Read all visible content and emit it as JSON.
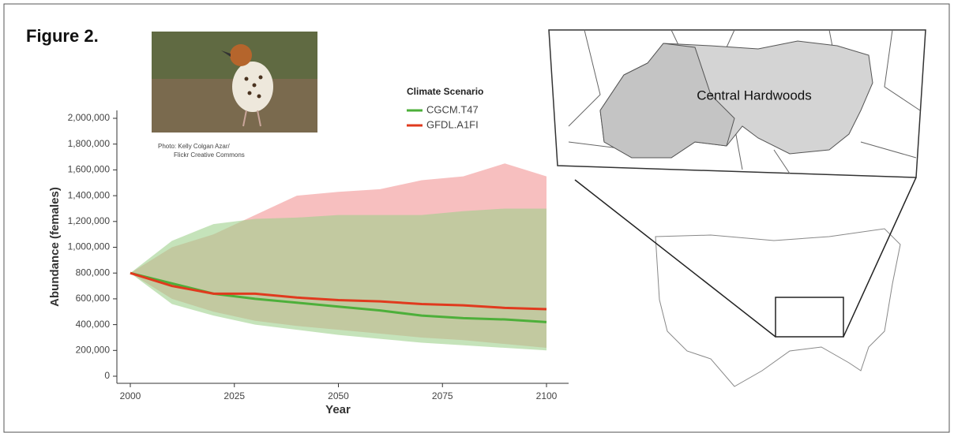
{
  "chart_data": {
    "type": "ribbon-line",
    "figure_label": "Figure 2.",
    "photo_credit": [
      "Photo: Kelly Colgan Azar/",
      "Flickr Creative Commons"
    ],
    "map_label": "Central Hardwoods",
    "legend_title": "Climate Scenario",
    "xlabel": "Year",
    "ylabel": "Abundance (females)",
    "x": [
      2000,
      2010,
      2020,
      2030,
      2040,
      2050,
      2060,
      2070,
      2080,
      2090,
      2100
    ],
    "series": [
      {
        "name": "CGCM.T47",
        "color": "#4daf3a",
        "band_color": "#9fd08c",
        "values": [
          800000,
          720000,
          640000,
          600000,
          570000,
          540000,
          510000,
          470000,
          450000,
          440000,
          420000
        ],
        "lower": [
          800000,
          560000,
          470000,
          400000,
          360000,
          320000,
          290000,
          260000,
          240000,
          220000,
          200000
        ],
        "upper": [
          800000,
          1050000,
          1180000,
          1220000,
          1230000,
          1250000,
          1250000,
          1250000,
          1280000,
          1300000,
          1300000
        ]
      },
      {
        "name": "GFDL.A1FI",
        "color": "#e03a1e",
        "band_color": "#f4a9a9",
        "values": [
          800000,
          700000,
          640000,
          640000,
          610000,
          590000,
          580000,
          560000,
          550000,
          530000,
          520000
        ],
        "lower": [
          800000,
          600000,
          500000,
          430000,
          390000,
          360000,
          330000,
          300000,
          280000,
          250000,
          220000
        ],
        "upper": [
          800000,
          1000000,
          1100000,
          1250000,
          1400000,
          1430000,
          1450000,
          1520000,
          1550000,
          1650000,
          1550000
        ]
      }
    ],
    "xlim": [
      2000,
      2100
    ],
    "xticks": [
      2000,
      2025,
      2050,
      2075,
      2100
    ],
    "ylim": [
      0,
      2000000
    ],
    "yticks": [
      0,
      {
        "value": 200000,
        "label": "200,000"
      },
      {
        "value": 400000,
        "label": "400,000"
      },
      {
        "value": 600000,
        "label": "600,000"
      },
      {
        "value": 800000,
        "label": "800,000"
      },
      {
        "value": 1000000,
        "label": "1,000,000"
      },
      {
        "value": 1200000,
        "label": "1,200,000"
      },
      {
        "value": 1400000,
        "label": "1,400,000"
      },
      {
        "value": 1600000,
        "label": "1,600,000"
      },
      {
        "value": 1800000,
        "label": "1,800,000"
      },
      {
        "value": 2000000,
        "label": "2,000,000"
      }
    ]
  }
}
